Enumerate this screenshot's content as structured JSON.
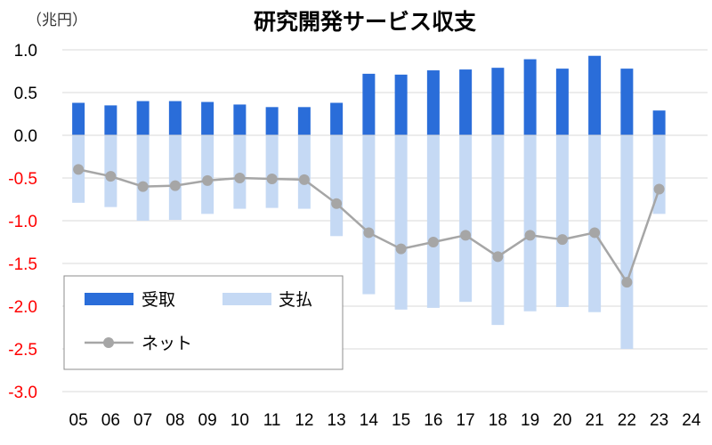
{
  "chart_data": {
    "type": "bar",
    "title": "研究開発サービス収支",
    "unit_label": "（兆円）",
    "x": [
      "05",
      "06",
      "07",
      "08",
      "09",
      "10",
      "11",
      "12",
      "13",
      "14",
      "15",
      "16",
      "17",
      "18",
      "19",
      "20",
      "21",
      "22",
      "23",
      "24"
    ],
    "ylim": [
      -3.0,
      1.0
    ],
    "yticks": [
      "1.0",
      "0.5",
      "0.0",
      "-0.5",
      "-1.0",
      "-1.5",
      "-2.0",
      "-2.5",
      "-3.0"
    ],
    "grid": true,
    "legend_position": "bottom-left",
    "series": [
      {
        "name": "受取",
        "kind": "bar",
        "color": "#2a6dd9",
        "values": [
          0.38,
          0.35,
          0.4,
          0.4,
          0.39,
          0.36,
          0.33,
          0.33,
          0.38,
          0.72,
          0.71,
          0.76,
          0.77,
          0.79,
          0.89,
          0.78,
          0.93,
          0.78,
          0.29,
          null
        ]
      },
      {
        "name": "支払",
        "kind": "bar",
        "color": "#c5d9f4",
        "values": [
          -0.79,
          -0.84,
          -1.0,
          -0.99,
          -0.92,
          -0.86,
          -0.85,
          -0.86,
          -1.18,
          -1.86,
          -2.04,
          -2.02,
          -1.95,
          -2.22,
          -2.06,
          -2.01,
          -2.07,
          -2.5,
          -0.92,
          null
        ]
      },
      {
        "name": "ネット",
        "kind": "line",
        "color": "#a6a6a6",
        "values": [
          -0.4,
          -0.48,
          -0.6,
          -0.59,
          -0.53,
          -0.5,
          -0.51,
          -0.52,
          -0.8,
          -1.14,
          -1.33,
          -1.25,
          -1.17,
          -1.42,
          -1.17,
          -1.22,
          -1.14,
          -1.72,
          -0.63,
          null
        ]
      }
    ]
  },
  "colors": {
    "negative_tick": "#ff0000",
    "positive_tick": "#000000",
    "grid": "#d9d9d9"
  }
}
